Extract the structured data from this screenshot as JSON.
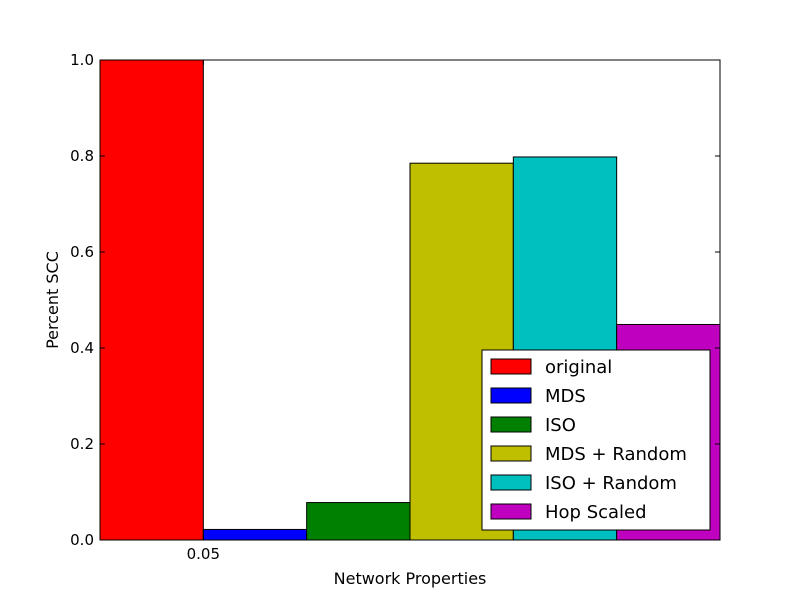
{
  "chart_data": {
    "type": "bar",
    "title": "",
    "xlabel": "Network Properties",
    "ylabel": "Percent SCC",
    "ylim": [
      0,
      1.0
    ],
    "yticks": [
      0.0,
      0.2,
      0.4,
      0.6,
      0.8,
      1.0
    ],
    "ytick_labels": [
      "0.0",
      "0.2",
      "0.4",
      "0.6",
      "0.8",
      "1.0"
    ],
    "categories": [
      "0.05"
    ],
    "grid": false,
    "legend_position": "lower-right",
    "series": [
      {
        "name": "original",
        "color": "#ff0000",
        "values": [
          1.0
        ]
      },
      {
        "name": "MDS",
        "color": "#0000ff",
        "values": [
          0.022
        ]
      },
      {
        "name": "ISO",
        "color": "#008000",
        "values": [
          0.078
        ]
      },
      {
        "name": "MDS + Random",
        "color": "#bfbf00",
        "values": [
          0.785
        ]
      },
      {
        "name": "ISO + Random",
        "color": "#00bfbf",
        "values": [
          0.798
        ]
      },
      {
        "name": "Hop Scaled",
        "color": "#bf00bf",
        "values": [
          0.449
        ]
      }
    ]
  }
}
